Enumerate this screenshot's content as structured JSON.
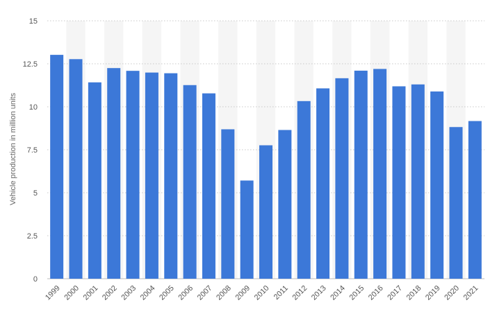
{
  "chart_data": {
    "type": "bar",
    "title": "",
    "xlabel": "",
    "ylabel": "Vehicle production in million units",
    "categories": [
      "1999",
      "2000",
      "2001",
      "2002",
      "2003",
      "2004",
      "2005",
      "2006",
      "2007",
      "2008",
      "2009",
      "2010",
      "2011",
      "2012",
      "2013",
      "2014",
      "2015",
      "2016",
      "2017",
      "2018",
      "2019",
      "2020",
      "2021"
    ],
    "values": [
      13.02,
      12.77,
      11.42,
      12.25,
      12.09,
      11.99,
      11.95,
      11.26,
      10.78,
      8.69,
      5.71,
      7.76,
      8.65,
      10.33,
      11.07,
      11.66,
      12.1,
      12.2,
      11.19,
      11.3,
      10.89,
      8.82,
      9.17
    ],
    "yticks": [
      "0",
      "2.5",
      "5",
      "7.5",
      "10",
      "12.5",
      "15"
    ],
    "ylim": [
      0,
      15
    ],
    "grid": true,
    "bar_color": "#3c78d8",
    "band_color": "#f5f5f5",
    "grid_color": "#c8c8c8"
  }
}
